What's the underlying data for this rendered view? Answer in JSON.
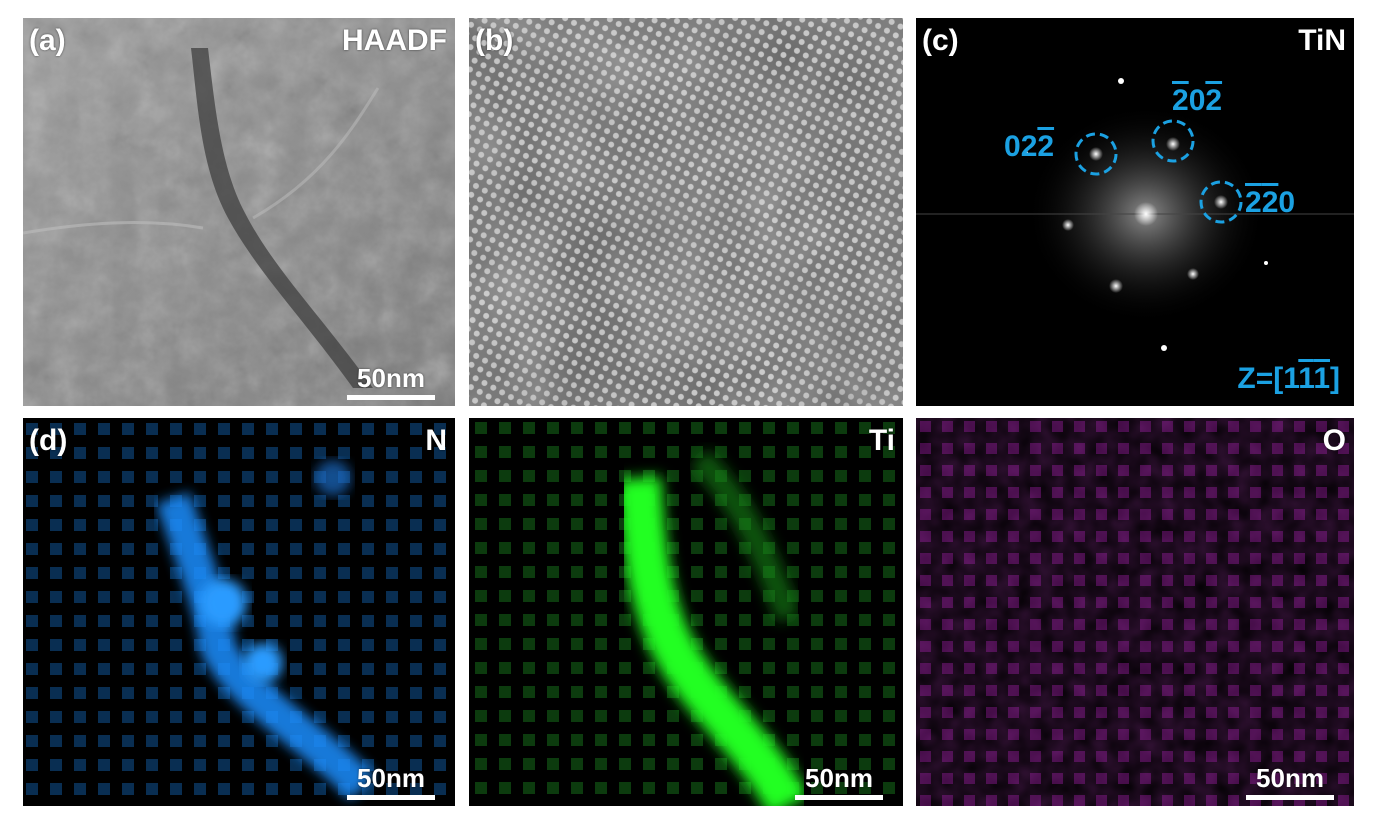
{
  "panels": {
    "a": {
      "label": "(a)",
      "mode": "HAADF",
      "scale": "50nm"
    },
    "b": {
      "label": "(b)"
    },
    "c": {
      "label": "(c)",
      "phase": "TiN",
      "spots": [
        {
          "pre": "0",
          "bar1": "2",
          "bar2": "2",
          "post": ""
        },
        {
          "pre": "",
          "bar1": "2",
          "mid": "0",
          "bar2": "2",
          "post": ""
        },
        {
          "pre": "",
          "bar1": "2",
          "bar2": "2",
          "post": "0"
        }
      ],
      "zone_prefix": "Z=[1",
      "zone_b1": "1",
      "zone_b2": "1",
      "zone_suffix": "]",
      "accent": "#1ba1e2"
    },
    "d": {
      "label": "(d)",
      "element": "N",
      "scale": "50nm",
      "color": "#1e8fff"
    },
    "e": {
      "element": "Ti",
      "scale": "50nm",
      "color": "#22ff22"
    },
    "f": {
      "element": "O",
      "scale": "50nm",
      "color": "#9b1fa0"
    }
  }
}
